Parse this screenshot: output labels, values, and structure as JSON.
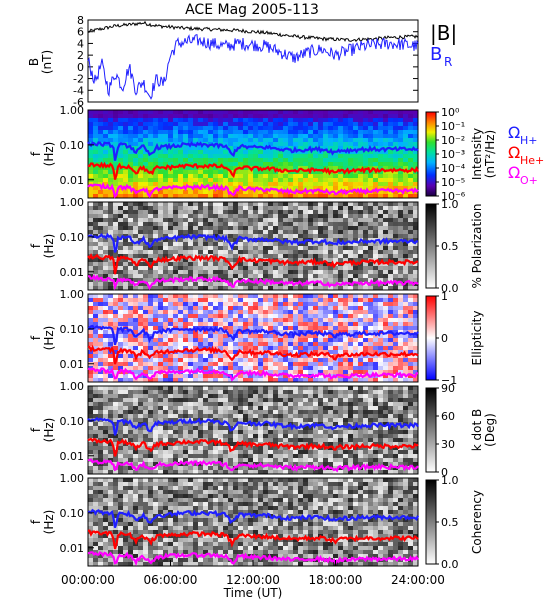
{
  "figure": {
    "title": "ACE Mag 2005-113",
    "x_axis": {
      "label": "Time (UT)",
      "ticks": [
        "00:00:00",
        "06:00:00",
        "12:00:00",
        "18:00:00",
        "24:00:00"
      ]
    }
  },
  "legend_right": {
    "b_total": "|B|",
    "b_r": "B",
    "b_r_sub": "R",
    "omega_h": "Ω",
    "omega_h_sub": "H+",
    "omega_he": "Ω",
    "omega_he_sub": "He+",
    "omega_o": "Ω",
    "omega_o_sub": "O+"
  },
  "colors": {
    "b_total": "#000000",
    "b_r": "#1f1fff",
    "omega_h": "#1f1fff",
    "omega_he": "#ff0000",
    "omega_o": "#ff00ff"
  },
  "chart_data": [
    {
      "type": "line",
      "panel": "magnetic_field",
      "ylabel": "B",
      "yunit": "(nT)",
      "ylim": [
        -6,
        8
      ],
      "y_ticks": [
        "8",
        "6",
        "4",
        "2",
        "0",
        "-2",
        "-4",
        "-6"
      ],
      "x_range_hours": [
        0,
        24
      ],
      "series": [
        {
          "name": "|B|",
          "x": [
            0,
            1,
            2,
            3,
            4,
            5,
            6,
            7,
            8,
            9,
            10,
            11,
            12,
            13,
            14,
            15,
            16,
            17,
            18,
            19,
            20,
            21,
            22,
            23,
            24
          ],
          "values": [
            6.0,
            6.5,
            7.0,
            7.2,
            7.5,
            7.0,
            6.8,
            6.6,
            6.5,
            6.4,
            6.3,
            6.2,
            6.0,
            5.8,
            5.5,
            5.2,
            5.0,
            4.8,
            4.7,
            4.6,
            4.7,
            4.8,
            5.0,
            5.1,
            5.2
          ]
        },
        {
          "name": "B",
          "name_sub": "R",
          "x": [
            0,
            0.5,
            1,
            1.5,
            2,
            2.5,
            3,
            3.5,
            4,
            4.5,
            5,
            5.5,
            6,
            6.5,
            7,
            8,
            9,
            10,
            11,
            12,
            13,
            14,
            15,
            16,
            17,
            18,
            19,
            20,
            21,
            22,
            23,
            24
          ],
          "values": [
            1.0,
            -2.5,
            0.5,
            -4.0,
            -1.0,
            -3.5,
            0.0,
            -4.0,
            -2.5,
            -5.0,
            -2.0,
            -3.0,
            2.0,
            4.0,
            4.2,
            4.5,
            4.0,
            3.5,
            4.0,
            3.8,
            3.5,
            2.5,
            1.5,
            2.5,
            3.0,
            2.0,
            2.8,
            3.5,
            3.8,
            4.0,
            3.8,
            3.5
          ]
        }
      ]
    },
    {
      "type": "heatmap",
      "panel": "intensity",
      "ylabel": "f",
      "yunit": "(Hz)",
      "yscale": "log",
      "ylim": [
        0.003,
        1.0
      ],
      "y_ticks": [
        "1.00",
        "0.10",
        "0.01"
      ],
      "colorbar": {
        "label": "Intensity",
        "unit": "(nT²/Hz)",
        "ticks": [
          "10⁰",
          "10⁻¹",
          "10⁻²",
          "10⁻³",
          "10⁻⁴",
          "10⁻⁵",
          "10⁻⁶"
        ],
        "range": [
          1e-06,
          1
        ]
      }
    },
    {
      "type": "heatmap",
      "panel": "polarization",
      "ylabel": "f",
      "yunit": "(Hz)",
      "yscale": "log",
      "ylim": [
        0.003,
        1.0
      ],
      "y_ticks": [
        "1.00",
        "0.10",
        "0.01"
      ],
      "colorbar": {
        "label": "% Polarization",
        "ticks": [
          "1.0",
          "0.5",
          "0.0"
        ],
        "range": [
          0,
          1
        ]
      }
    },
    {
      "type": "heatmap",
      "panel": "ellipticity",
      "ylabel": "f",
      "yunit": "(Hz)",
      "yscale": "log",
      "ylim": [
        0.003,
        1.0
      ],
      "y_ticks": [
        "1.00",
        "0.10",
        "0.01"
      ],
      "colorbar": {
        "label": "Ellipticity",
        "ticks": [
          "1",
          "0",
          "−1"
        ],
        "range": [
          -1,
          1
        ]
      }
    },
    {
      "type": "heatmap",
      "panel": "k_dot_b",
      "ylabel": "f",
      "yunit": "(Hz)",
      "yscale": "log",
      "ylim": [
        0.003,
        1.0
      ],
      "y_ticks": [
        "1.00",
        "0.10",
        "0.01"
      ],
      "colorbar": {
        "label": "k dot B",
        "unit": "(Deg)",
        "ticks": [
          "90",
          "60",
          "30",
          "0"
        ],
        "range": [
          0,
          90
        ]
      }
    },
    {
      "type": "heatmap",
      "panel": "coherency",
      "ylabel": "f",
      "yunit": "(Hz)",
      "yscale": "log",
      "ylim": [
        0.003,
        1.0
      ],
      "y_ticks": [
        "1.00",
        "0.10",
        "0.01"
      ],
      "colorbar": {
        "label": "Coherency",
        "ticks": [
          "1.0",
          "0.5",
          "0.0"
        ],
        "range": [
          0,
          1
        ]
      }
    }
  ],
  "gyrofrequency_curves": {
    "x": [
      0,
      1,
      1.8,
      2.0,
      2.2,
      3,
      3.5,
      4,
      4.5,
      5,
      6,
      7,
      8,
      9,
      10,
      10.5,
      11,
      12,
      13,
      14,
      15,
      16,
      17,
      17.5,
      18,
      18.2,
      19,
      20,
      21,
      22,
      23,
      24
    ],
    "omega_h_hz": [
      0.11,
      0.105,
      0.1,
      0.02,
      0.1,
      0.095,
      0.06,
      0.09,
      0.05,
      0.085,
      0.09,
      0.1,
      0.1,
      0.1,
      0.09,
      0.05,
      0.09,
      0.085,
      0.085,
      0.075,
      0.07,
      0.075,
      0.075,
      0.07,
      0.06,
      0.07,
      0.07,
      0.075,
      0.075,
      0.075,
      0.075,
      0.075
    ],
    "omega_he_hz": [
      0.028,
      0.026,
      0.025,
      0.006,
      0.025,
      0.024,
      0.016,
      0.023,
      0.014,
      0.022,
      0.023,
      0.025,
      0.025,
      0.025,
      0.023,
      0.013,
      0.023,
      0.021,
      0.021,
      0.019,
      0.018,
      0.019,
      0.019,
      0.018,
      0.015,
      0.018,
      0.018,
      0.019,
      0.019,
      0.019,
      0.019,
      0.019
    ],
    "omega_o_hz": [
      0.007,
      0.0065,
      0.0062,
      0.003,
      0.0062,
      0.006,
      0.004,
      0.0058,
      0.0037,
      0.0055,
      0.0058,
      0.0062,
      0.0062,
      0.0062,
      0.0058,
      0.0035,
      0.0058,
      0.0053,
      0.0053,
      0.0048,
      0.0045,
      0.0048,
      0.0048,
      0.0045,
      0.004,
      0.0045,
      0.0045,
      0.0048,
      0.0048,
      0.0048,
      0.0048,
      0.0048
    ]
  }
}
